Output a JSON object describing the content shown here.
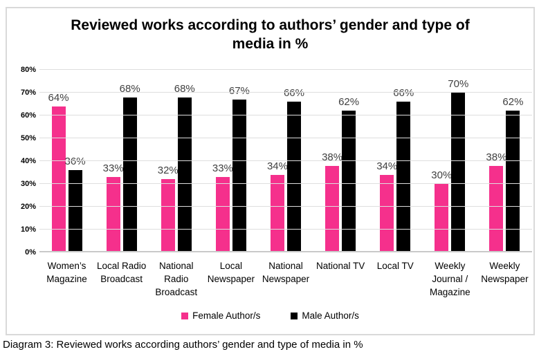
{
  "chart": {
    "title": "Reviewed works according to authors’ gender and type of media in %",
    "title_lines": [
      "Reviewed works according to authors’ gender and type of",
      "media in %"
    ]
  },
  "legend": {
    "female_label": "Female Author/s",
    "male_label": "Male Author/s"
  },
  "caption": "Diagram 3: Reviewed works according authors’ gender and type of media in %",
  "colors": {
    "female": "#F5308C",
    "male": "#000000",
    "grid": "#DEDEDE",
    "axis_line": "#C9C9C9",
    "value_label": "#404040",
    "frame_border": "#D9D9D9"
  },
  "chart_data": {
    "type": "bar",
    "title": "Reviewed works according to authors’ gender and type of media in %",
    "categories": [
      "Women’s Magazine",
      "Local Radio Broadcast",
      "National Radio Broadcast",
      "Local Newspaper",
      "National Newspaper",
      "National TV",
      "Local TV",
      "Weekly Journal / Magazine",
      "Weekly Newspaper"
    ],
    "category_display_lines": [
      [
        "Women’s",
        "Magazine"
      ],
      [
        "Local Radio",
        "Broadcast"
      ],
      [
        "National",
        "Radio",
        "Broadcast"
      ],
      [
        "Local",
        "Newspaper"
      ],
      [
        "National",
        "Newspaper"
      ],
      [
        "National TV"
      ],
      [
        "Local TV"
      ],
      [
        "Weekly",
        "Journal /",
        "Magazine"
      ],
      [
        "Weekly",
        "Newspaper"
      ]
    ],
    "series": [
      {
        "name": "Female Author/s",
        "color_key": "female",
        "values": [
          64,
          33,
          32,
          33,
          34,
          38,
          34,
          30,
          38
        ]
      },
      {
        "name": "Male Author/s",
        "color_key": "male",
        "values": [
          36,
          68,
          68,
          67,
          66,
          62,
          66,
          70,
          62
        ]
      }
    ],
    "data_labels": {
      "female": [
        "64%",
        "33%",
        "32%",
        "33%",
        "34%",
        "38%",
        "34%",
        "30%",
        "38%"
      ],
      "male": [
        "36%",
        "68%",
        "68%",
        "67%",
        "66%",
        "62%",
        "66%",
        "70%",
        "62%"
      ]
    },
    "xlabel": "",
    "ylabel": "",
    "ylim": [
      0,
      80
    ],
    "ytick_step": 10,
    "yticks": [
      "0%",
      "10%",
      "20%",
      "30%",
      "40%",
      "50%",
      "60%",
      "70%",
      "80%"
    ],
    "grid": true,
    "legend_position": "bottom"
  }
}
